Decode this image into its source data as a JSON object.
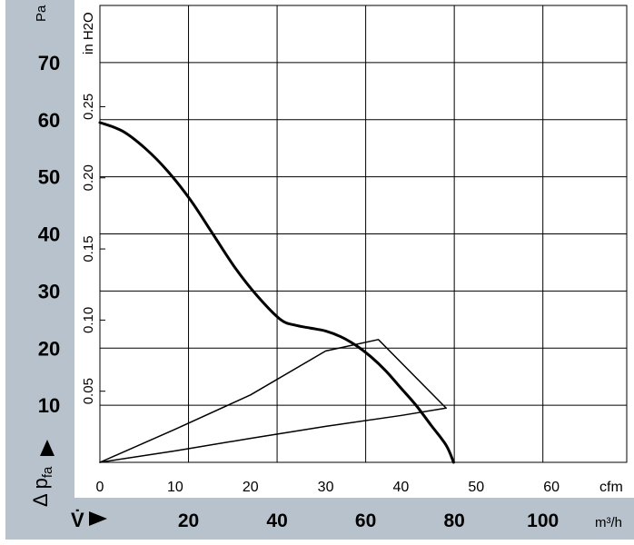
{
  "chart_data": {
    "type": "line",
    "x_axis": {
      "cfm": {
        "unit": "cfm",
        "min": 0,
        "max": 70,
        "ticks": [
          0,
          10,
          20,
          30,
          40,
          50,
          60
        ]
      },
      "m3h": {
        "unit": "m³/h",
        "symbol": "V̇",
        "ticks": [
          20,
          40,
          60,
          80,
          100
        ],
        "per_cfm": 1.699
      }
    },
    "y_axis": {
      "pa": {
        "unit": "Pa",
        "min": 0,
        "max": 80,
        "ticks": [
          10,
          20,
          30,
          40,
          50,
          60,
          70
        ]
      },
      "inh2o": {
        "unit": "in H2O",
        "ticks": [
          "0.05",
          "0.10",
          "0.15",
          "0.20",
          "0.25"
        ],
        "pa_per_inh2o": 249.1
      }
    },
    "ylabel": "Δ pfa",
    "grid": true,
    "series": [
      {
        "kind": "fan-curve",
        "x": [
          0,
          3,
          6,
          9,
          12,
          15,
          18,
          21,
          24,
          26,
          28,
          30,
          32,
          34,
          36,
          38,
          40,
          42,
          44,
          46,
          47
        ],
        "y": [
          59.5,
          58,
          55,
          51,
          46,
          40,
          34,
          29,
          25,
          24,
          23.5,
          23,
          22,
          20.5,
          18.5,
          16,
          13,
          10,
          6.5,
          3,
          0
        ]
      },
      {
        "kind": "operating-range-upper",
        "x": [
          0,
          10,
          20,
          30,
          37,
          46
        ],
        "y": [
          0,
          5.8,
          11.8,
          19.5,
          21.5,
          9.5
        ]
      },
      {
        "kind": "operating-range-lower",
        "x": [
          0,
          10,
          20,
          30,
          40,
          46
        ],
        "y": [
          0,
          2,
          4.2,
          6.3,
          8.2,
          9.5
        ]
      }
    ],
    "colors": {
      "sidebar": "#b8c2cc",
      "grid": "#000000",
      "curve": "#000000"
    }
  }
}
